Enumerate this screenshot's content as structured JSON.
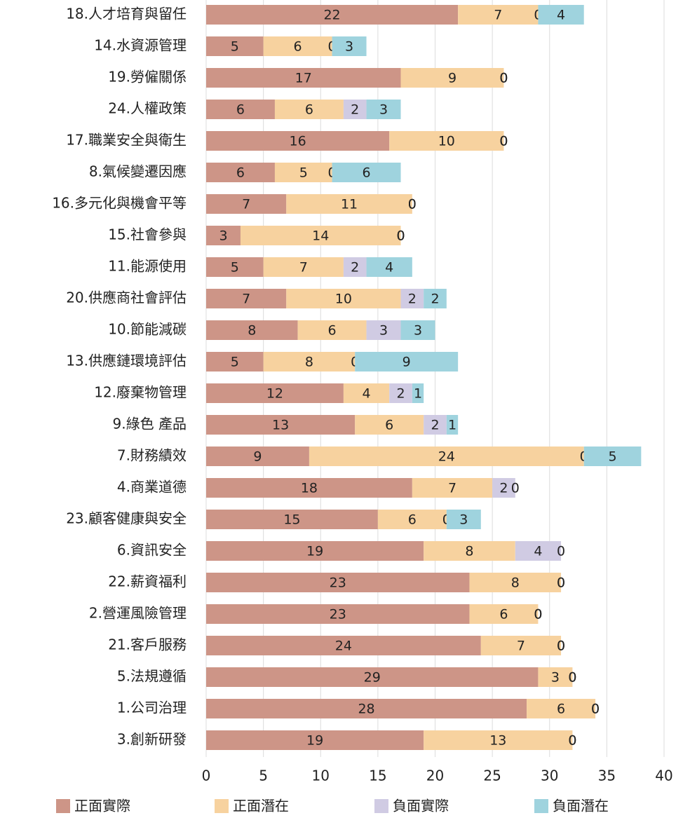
{
  "chart_data": {
    "type": "stacked-bar-horizontal",
    "categories": [
      "18.人才培育與留任",
      "14.水資源管理",
      "19.勞僱關係",
      "24.人權政策",
      "17.職業安全與衛生",
      "8.氣候變遷因應",
      "16.多元化與機會平等",
      "15.社會參與",
      "11.能源使用",
      "20.供應商社會評估",
      "10.節能減碳",
      "13.供應鏈環境評估",
      "12.廢棄物管理",
      "9.綠色 產品",
      "7.財務績效",
      "4.商業道德",
      "23.顧客健康與安全",
      "6.資訊安全",
      "22.薪資福利",
      "2.營運風險管理",
      "21.客戶服務",
      "5.法規遵循",
      "1.公司治理",
      "3.創新研發"
    ],
    "series": [
      {
        "name": "正面實際",
        "color": "#cd9587",
        "values": [
          22,
          5,
          17,
          6,
          16,
          6,
          7,
          3,
          5,
          7,
          8,
          5,
          12,
          13,
          9,
          18,
          15,
          19,
          23,
          23,
          24,
          29,
          28,
          19
        ]
      },
      {
        "name": "正面潛在",
        "color": "#f7d29f",
        "values": [
          7,
          6,
          9,
          6,
          10,
          5,
          11,
          14,
          7,
          10,
          6,
          8,
          4,
          6,
          24,
          7,
          6,
          8,
          8,
          6,
          7,
          3,
          6,
          13
        ]
      },
      {
        "name": "負面實際",
        "color": "#d0cbe3",
        "values": [
          0,
          0,
          0,
          2,
          0,
          0,
          0,
          0,
          2,
          2,
          3,
          0,
          2,
          2,
          0,
          2,
          0,
          4,
          0,
          0,
          0,
          0,
          0,
          0
        ]
      },
      {
        "name": "負面潛在",
        "color": "#9fd3de",
        "values": [
          4,
          3,
          0,
          3,
          0,
          6,
          0,
          0,
          4,
          2,
          3,
          9,
          1,
          1,
          5,
          0,
          3,
          0,
          0,
          0,
          0,
          0,
          0,
          0
        ]
      }
    ],
    "xlim": [
      0,
      40
    ],
    "xticks": [
      0,
      5,
      10,
      15,
      20,
      25,
      30,
      35,
      40
    ],
    "grid": true,
    "legend": "bottom"
  }
}
